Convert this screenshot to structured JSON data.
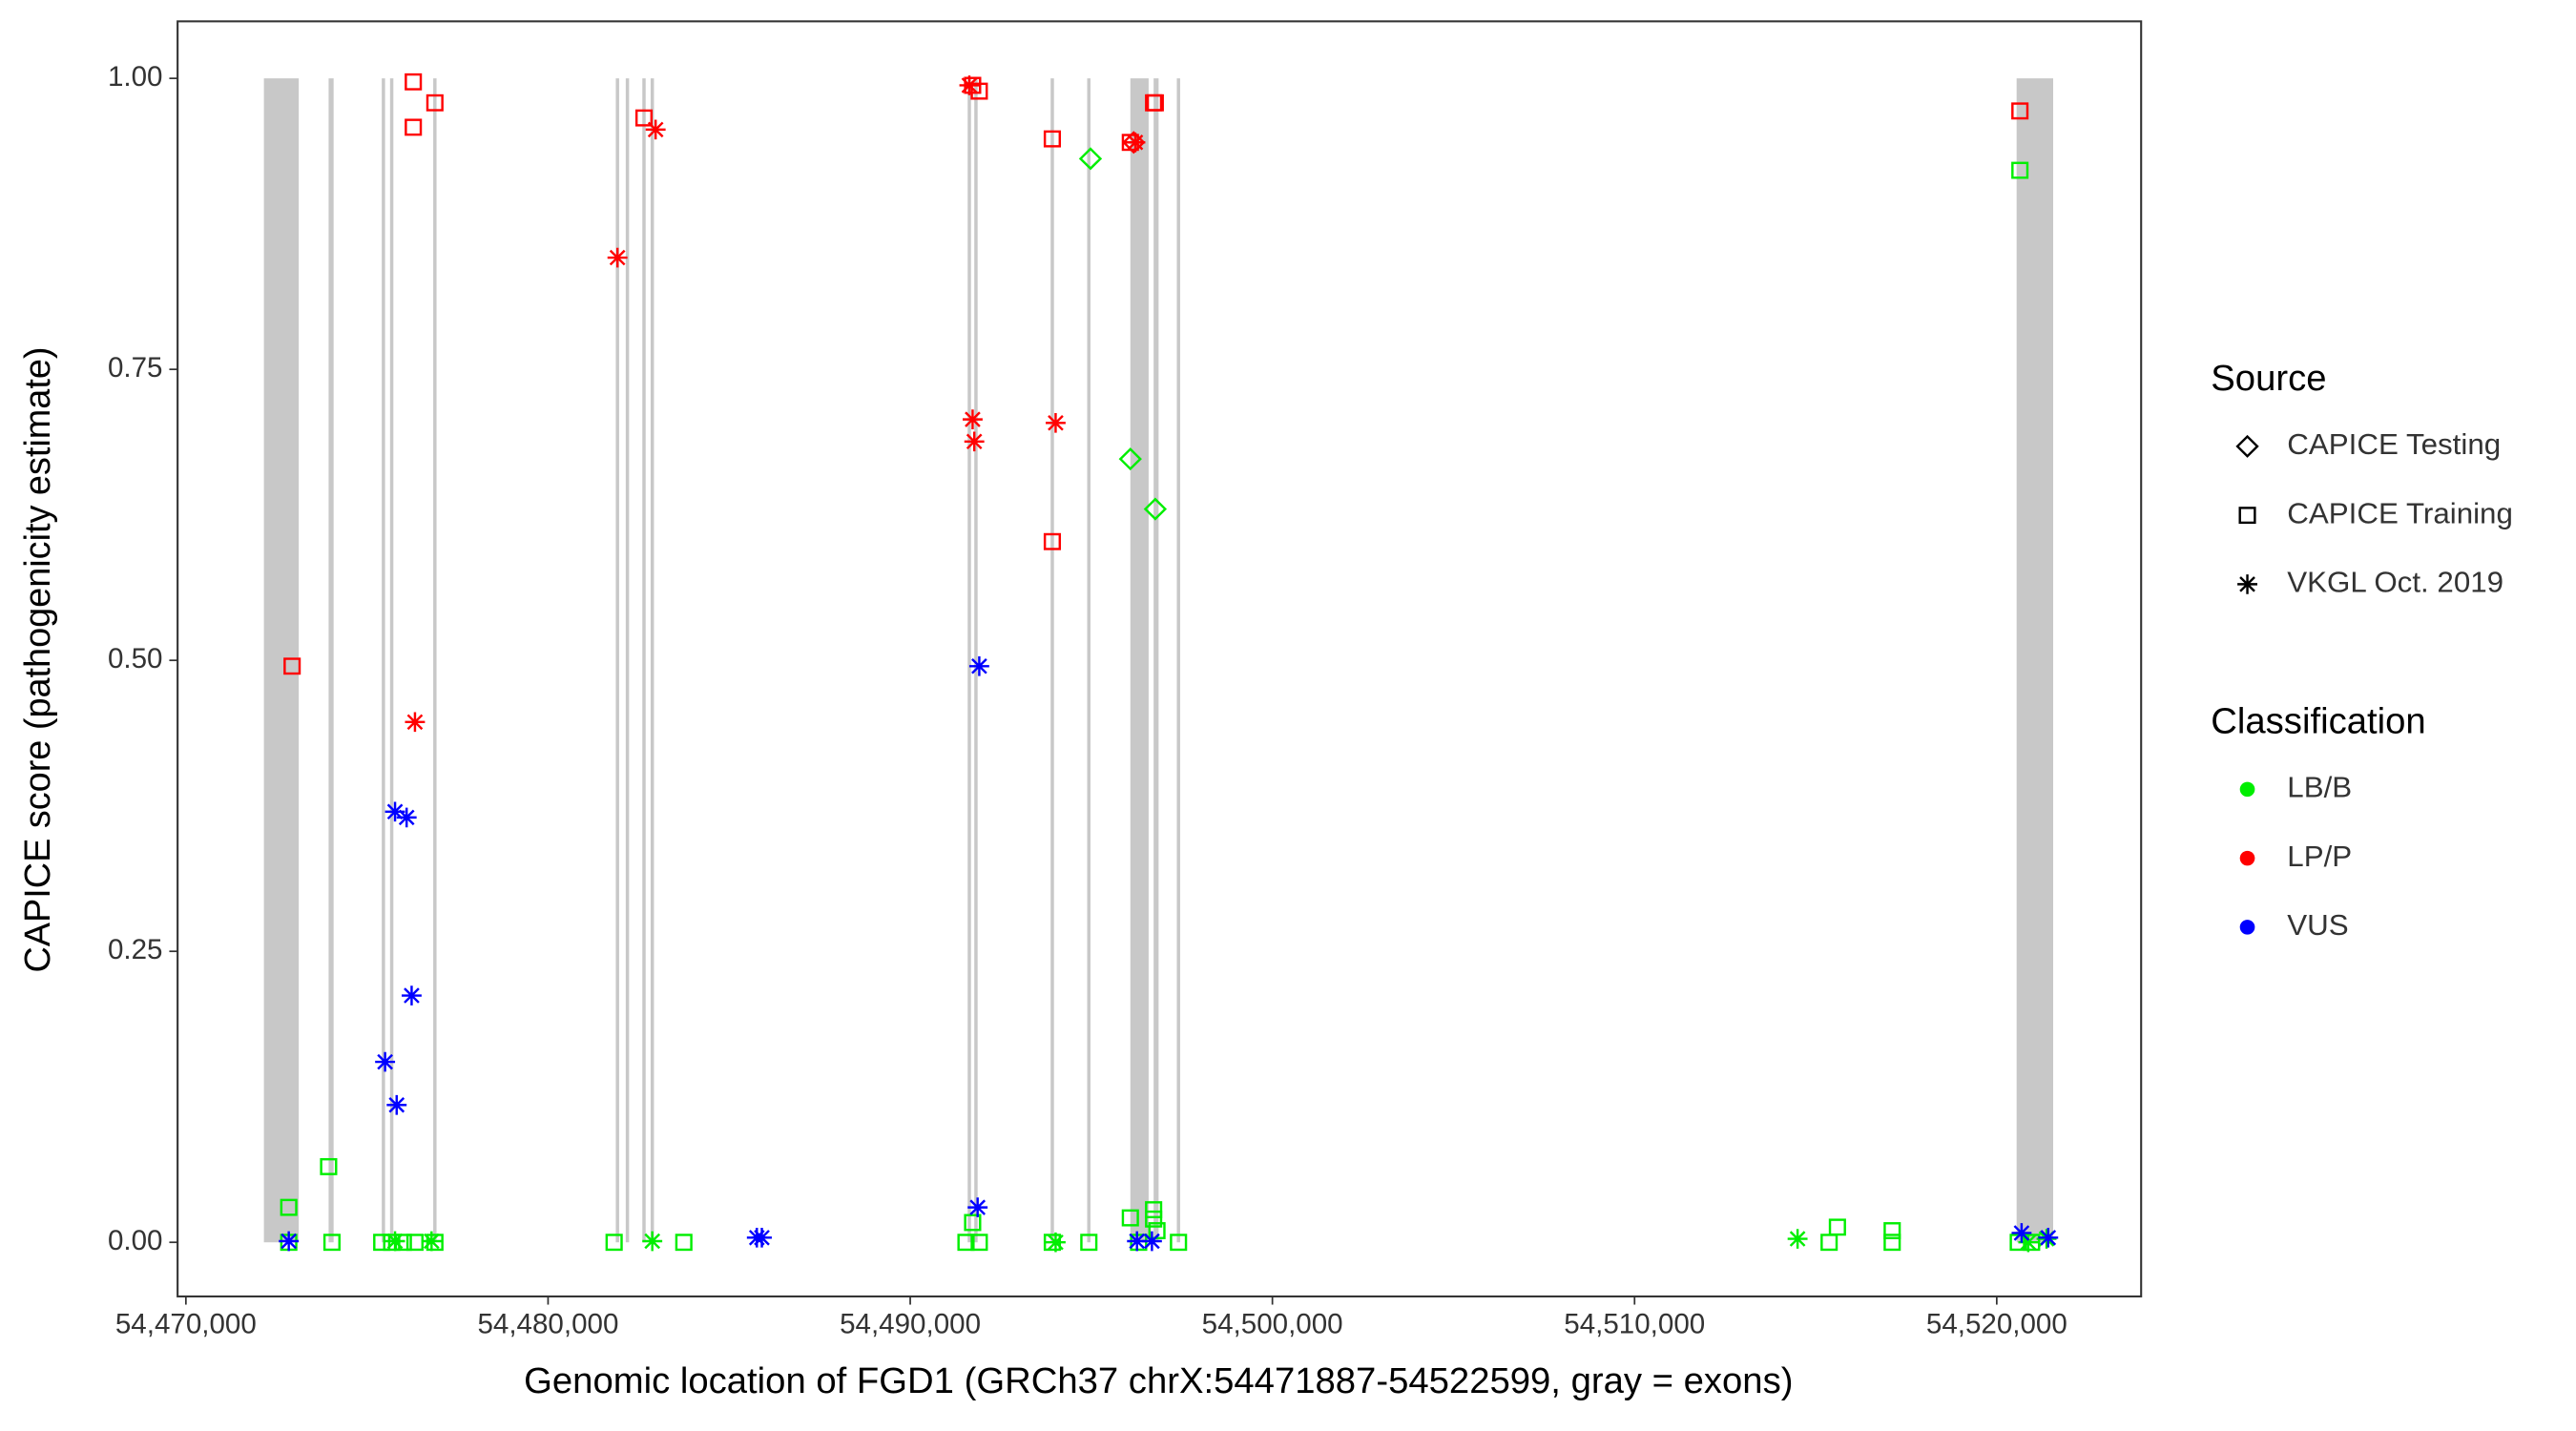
{
  "chart_data": {
    "type": "scatter",
    "x_label": "Genomic location of FGD1 (GRCh37 chrX:54471887-54522599, gray = exons)",
    "y_label": "CAPICE score (pathogenicity estimate)",
    "xlim": [
      54469771,
      54523987
    ],
    "ylim": [
      -0.0465,
      1.049
    ],
    "xticks": [
      {
        "value": 54470000,
        "label": "54,470,000"
      },
      {
        "value": 54480000,
        "label": "54,480,000"
      },
      {
        "value": 54490000,
        "label": "54,490,000"
      },
      {
        "value": 54500000,
        "label": "54,500,000"
      },
      {
        "value": 54510000,
        "label": "54,510,000"
      },
      {
        "value": 54520000,
        "label": "54,520,000"
      }
    ],
    "yticks": [
      {
        "value": 0,
        "label": "0.00"
      },
      {
        "value": 0.25,
        "label": "0.25"
      },
      {
        "value": 0.5,
        "label": "0.50"
      },
      {
        "value": 0.75,
        "label": "0.75"
      },
      {
        "value": 1,
        "label": "1.00"
      }
    ],
    "exon_color": "#c8c8c8",
    "exons": [
      [
        54472154,
        54473116
      ],
      [
        54473941,
        54474079
      ],
      [
        54475408,
        54475500
      ],
      [
        54475637,
        54475729
      ],
      [
        54476829,
        54476921
      ],
      [
        54481870,
        54481962
      ],
      [
        54482145,
        54482237
      ],
      [
        54482603,
        54482695
      ],
      [
        54482832,
        54482924
      ],
      [
        54491586,
        54491678
      ],
      [
        54491769,
        54491861
      ],
      [
        54493877,
        54493969
      ],
      [
        54494886,
        54494977
      ],
      [
        54496078,
        54496582
      ],
      [
        54496720,
        54496858
      ],
      [
        54497361,
        54497453
      ],
      [
        54520549,
        54521558
      ]
    ],
    "source_title": "Source",
    "sources": [
      {
        "name": "CAPICE Testing",
        "shape": "diamond"
      },
      {
        "name": "CAPICE Training",
        "shape": "square"
      },
      {
        "name": "VKGL Oct. 2019",
        "shape": "star"
      }
    ],
    "classification_title": "Classification",
    "classifications": [
      {
        "name": "LB/B",
        "color": "#00ee00"
      },
      {
        "name": "LP/P",
        "color": "#ff0000"
      },
      {
        "name": "VUS",
        "color": "#0000ff"
      }
    ],
    "series": [
      {
        "source": 1,
        "classification": 1,
        "x": [
          54472933,
          54476279,
          54476279,
          54476875,
          54482649,
          54491723,
          54491906,
          54493923,
          54493923,
          54496078,
          54496720,
          54496766,
          54520640
        ],
        "values": [
          0.495,
          0.997,
          0.958,
          0.979,
          0.966,
          0.994,
          0.989,
          0.948,
          0.602,
          0.945,
          0.979,
          0.979,
          0.972
        ]
      },
      {
        "source": 2,
        "classification": 1,
        "x": [
          54476325,
          54481916,
          54482970,
          54491632,
          54491723,
          54491769,
          54494015,
          54496215
        ],
        "values": [
          0.447,
          0.846,
          0.956,
          0.994,
          0.707,
          0.688,
          0.704,
          0.945
        ]
      },
      {
        "source": 0,
        "classification": 1,
        "x": [
          54496170
        ],
        "values": [
          0.945
        ]
      },
      {
        "source": 0,
        "classification": 0,
        "x": [
          54494977,
          54496078,
          54496766
        ],
        "values": [
          0.931,
          0.673,
          0.63
        ]
      },
      {
        "source": 1,
        "classification": 0,
        "x": [
          54472841,
          54473941,
          54472841,
          54474033,
          54475408,
          54475683,
          54476004,
          54476325,
          54476875,
          54481824,
          54483749,
          54491540,
          54491723,
          54491906,
          54493923,
          54494932,
          54496078,
          54496307,
          54496720,
          54496720,
          54496812,
          54497407,
          54515372,
          54515601,
          54517113,
          54517113,
          54520640,
          54520595,
          54520962
        ],
        "values": [
          0.03,
          0.065,
          0,
          0,
          0,
          0,
          0,
          0,
          0,
          0,
          0,
          0,
          0.017,
          0,
          0,
          0,
          0.021,
          0,
          0.028,
          0.02,
          0.01,
          0,
          0,
          0.013,
          0.01,
          0,
          0.921,
          0,
          0
        ]
      },
      {
        "source": 2,
        "classification": 0,
        "x": [
          54475775,
          54476783,
          54482878,
          54494015,
          54514501,
          54520870,
          54521375
        ],
        "values": [
          0.001,
          0.001,
          0.001,
          0,
          0.003,
          0,
          0.003
        ]
      },
      {
        "source": 2,
        "classification": 2,
        "x": [
          54475775,
          54476095,
          54476233,
          54475500,
          54475820,
          54491906,
          54491861,
          54472841,
          54485765,
          54485903,
          54496261,
          54496674,
          54520686,
          54521421
        ],
        "values": [
          0.37,
          0.365,
          0.212,
          0.155,
          0.118,
          0.495,
          0.03,
          0.001,
          0.004,
          0.004,
          0.001,
          0.001,
          0.008,
          0.004
        ]
      }
    ]
  }
}
